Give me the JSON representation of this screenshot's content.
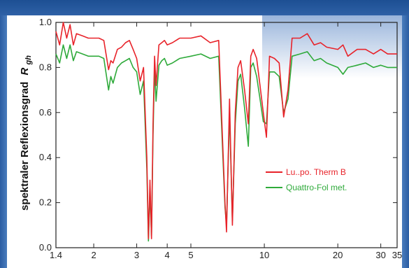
{
  "chart_data": {
    "type": "line",
    "title": "",
    "ylabel": "spektraler Reflexionsgrad",
    "ylabel_symbol": "R",
    "ylabel_subscript": "gh",
    "xlabel": "",
    "x_scale": "log",
    "xlim": [
      1.4,
      35
    ],
    "ylim": [
      0.0,
      1.0
    ],
    "x_ticks": [
      1.4,
      2,
      3,
      4,
      5,
      10,
      20,
      30,
      35
    ],
    "x_tick_labels": [
      "1.4",
      "2",
      "3",
      "4",
      "5",
      "10",
      "20",
      "30",
      "35"
    ],
    "y_ticks": [
      0.0,
      0.2,
      0.4,
      0.6,
      0.8,
      1.0
    ],
    "y_tick_labels": [
      "0.0",
      "0.2",
      "0.4",
      "0.6",
      "0.8",
      "1.0"
    ],
    "grid": false,
    "legend_position": "center-right",
    "series": [
      {
        "name": "Lu..po. Therm B",
        "color": "#e8232a",
        "x": [
          1.4,
          1.45,
          1.5,
          1.55,
          1.6,
          1.65,
          1.7,
          1.8,
          1.9,
          2.0,
          2.1,
          2.2,
          2.3,
          2.35,
          2.4,
          2.5,
          2.6,
          2.7,
          2.8,
          2.9,
          3.0,
          3.1,
          3.2,
          3.3,
          3.35,
          3.4,
          3.45,
          3.5,
          3.55,
          3.6,
          3.7,
          3.8,
          3.9,
          4.0,
          4.2,
          4.5,
          5.0,
          5.5,
          6.0,
          6.5,
          6.9,
          7.0,
          7.2,
          7.4,
          7.6,
          7.8,
          8.0,
          8.3,
          8.6,
          8.8,
          9.0,
          9.3,
          9.6,
          9.9,
          10.2,
          10.5,
          11.0,
          11.5,
          12.0,
          12.5,
          13.0,
          14.0,
          15.0,
          16.0,
          17.0,
          18.0,
          20.0,
          21.0,
          22.0,
          24.0,
          26.0,
          28.0,
          30.0,
          32.0,
          35.0
        ],
        "values": [
          0.96,
          0.9,
          1.0,
          0.93,
          0.99,
          0.9,
          0.95,
          0.94,
          0.93,
          0.93,
          0.93,
          0.92,
          0.79,
          0.83,
          0.82,
          0.88,
          0.89,
          0.91,
          0.92,
          0.88,
          0.84,
          0.74,
          0.8,
          0.4,
          0.04,
          0.3,
          0.04,
          0.55,
          0.85,
          0.72,
          0.9,
          0.91,
          0.92,
          0.9,
          0.91,
          0.93,
          0.93,
          0.94,
          0.91,
          0.92,
          0.2,
          0.07,
          0.66,
          0.1,
          0.6,
          0.8,
          0.83,
          0.7,
          0.55,
          0.85,
          0.88,
          0.84,
          0.72,
          0.6,
          0.49,
          0.85,
          0.84,
          0.82,
          0.58,
          0.7,
          0.93,
          0.93,
          0.95,
          0.9,
          0.91,
          0.89,
          0.88,
          0.9,
          0.85,
          0.88,
          0.88,
          0.86,
          0.88,
          0.86,
          0.86
        ]
      },
      {
        "name": "Quattro-Fol met.",
        "color": "#2eaa3a",
        "x": [
          1.4,
          1.45,
          1.5,
          1.55,
          1.6,
          1.65,
          1.7,
          1.8,
          1.9,
          2.0,
          2.1,
          2.2,
          2.3,
          2.35,
          2.4,
          2.5,
          2.6,
          2.7,
          2.8,
          2.9,
          3.0,
          3.1,
          3.2,
          3.3,
          3.35,
          3.4,
          3.45,
          3.5,
          3.55,
          3.6,
          3.7,
          3.8,
          3.9,
          4.0,
          4.2,
          4.5,
          5.0,
          5.5,
          6.0,
          6.5,
          6.9,
          7.0,
          7.2,
          7.4,
          7.6,
          7.8,
          8.0,
          8.3,
          8.6,
          8.8,
          9.0,
          9.3,
          9.6,
          9.9,
          10.2,
          10.5,
          11.0,
          11.5,
          12.0,
          12.5,
          13.0,
          14.0,
          15.0,
          16.0,
          17.0,
          18.0,
          20.0,
          21.0,
          22.0,
          24.0,
          26.0,
          28.0,
          30.0,
          32.0,
          35.0
        ],
        "values": [
          0.86,
          0.82,
          0.9,
          0.84,
          0.9,
          0.83,
          0.87,
          0.86,
          0.85,
          0.85,
          0.85,
          0.84,
          0.7,
          0.76,
          0.73,
          0.8,
          0.82,
          0.83,
          0.84,
          0.8,
          0.78,
          0.68,
          0.74,
          0.35,
          0.03,
          0.25,
          0.05,
          0.5,
          0.8,
          0.65,
          0.81,
          0.83,
          0.84,
          0.81,
          0.82,
          0.84,
          0.85,
          0.86,
          0.84,
          0.85,
          0.18,
          0.1,
          0.6,
          0.12,
          0.55,
          0.74,
          0.77,
          0.62,
          0.45,
          0.8,
          0.82,
          0.76,
          0.66,
          0.56,
          0.55,
          0.78,
          0.78,
          0.76,
          0.6,
          0.66,
          0.85,
          0.86,
          0.87,
          0.83,
          0.84,
          0.82,
          0.8,
          0.77,
          0.8,
          0.81,
          0.82,
          0.8,
          0.81,
          0.8,
          0.8
        ]
      }
    ]
  }
}
